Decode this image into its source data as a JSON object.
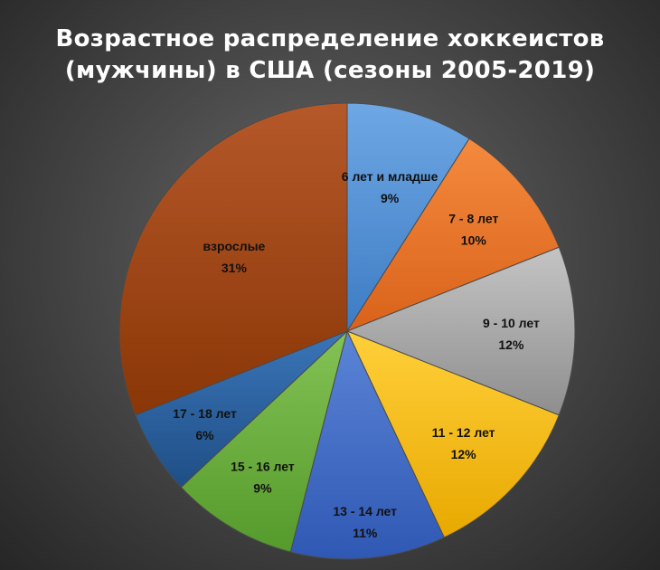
{
  "chart_data": {
    "type": "pie",
    "title_lines": [
      "Возрастное распределение хоккеистов",
      "(мужчины) в США (сезоны 2005-2019)"
    ],
    "start_angle_deg": 0,
    "direction": "clockwise",
    "slices": [
      {
        "label": "6 лет и младше",
        "value": 9,
        "value_label": "9%",
        "color": "#6ea7e4",
        "color_dark": "#3d7cc4"
      },
      {
        "label": "7 - 8  лет",
        "value": 10,
        "value_label": "10%",
        "color": "#f48a3e",
        "color_dark": "#d9621a"
      },
      {
        "label": "9 - 10 лет",
        "value": 12,
        "value_label": "12%",
        "color": "#c4c4c4",
        "color_dark": "#8e8e8e"
      },
      {
        "label": "11 - 12 лет",
        "value": 12,
        "value_label": "12%",
        "color": "#ffd03a",
        "color_dark": "#e8a800"
      },
      {
        "label": "13 - 14 лет",
        "value": 11,
        "value_label": "11%",
        "color": "#5b85d6",
        "color_dark": "#2f58b4"
      },
      {
        "label": "15 - 16 лет",
        "value": 9,
        "value_label": "9%",
        "color": "#84c254",
        "color_dark": "#559a2c"
      },
      {
        "label": "17 - 18 лет",
        "value": 6,
        "value_label": "6%",
        "color": "#3a75b8",
        "color_dark": "#1f4e85"
      },
      {
        "label": "взрослые",
        "value": 31,
        "value_label": "31%",
        "color": "#b5582a",
        "color_dark": "#8a3606"
      }
    ]
  }
}
